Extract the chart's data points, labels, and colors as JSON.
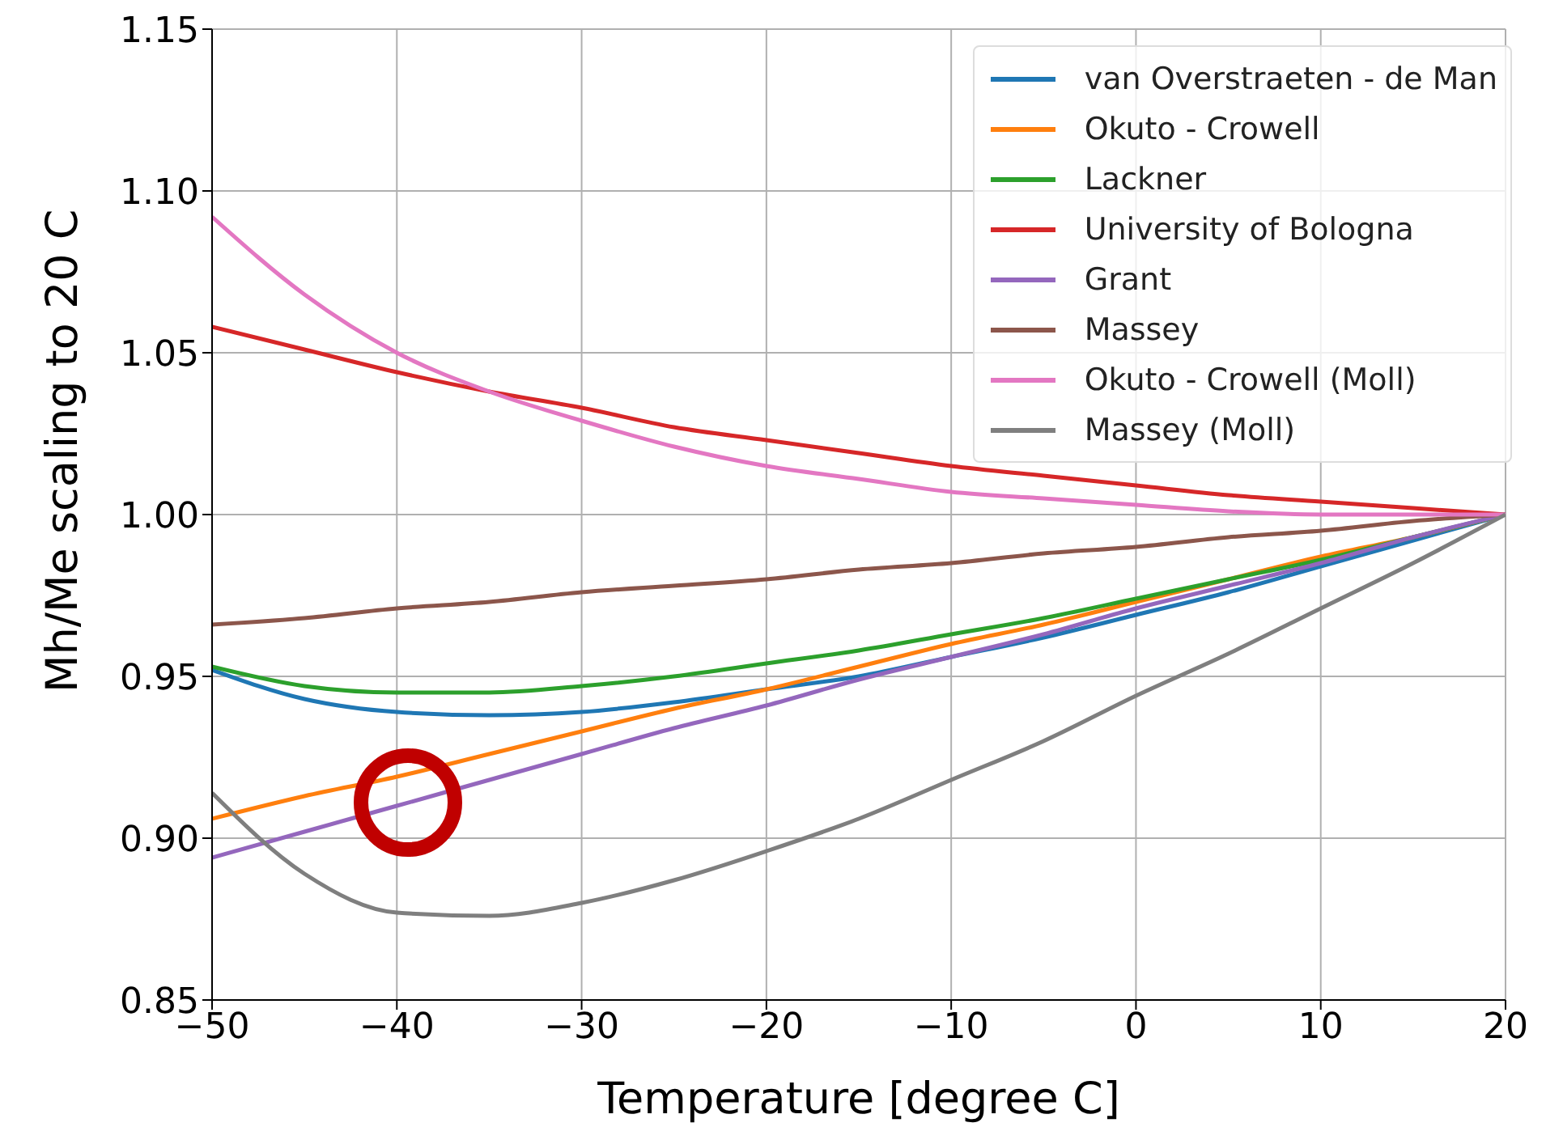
{
  "chart_data": {
    "type": "line",
    "xlabel": "Temperature [degree C]",
    "ylabel": "Mh/Me scaling to 20 C",
    "x": [
      -50,
      -45,
      -40,
      -35,
      -30,
      -25,
      -20,
      -15,
      -10,
      -5,
      0,
      5,
      10,
      15,
      20
    ],
    "series": [
      {
        "name": "van Overstraeten - de Man",
        "color": "#1f77b4",
        "values": [
          0.952,
          0.943,
          0.939,
          0.938,
          0.939,
          0.942,
          0.946,
          0.95,
          0.956,
          0.962,
          0.969,
          0.976,
          0.984,
          0.992,
          1.0
        ]
      },
      {
        "name": "Okuto - Crowell",
        "color": "#ff7f0e",
        "values": [
          0.906,
          0.913,
          0.919,
          0.926,
          0.933,
          0.94,
          0.946,
          0.953,
          0.96,
          0.966,
          0.973,
          0.98,
          0.987,
          0.993,
          1.0
        ]
      },
      {
        "name": "Lackner",
        "color": "#2ca02c",
        "values": [
          0.953,
          0.947,
          0.945,
          0.945,
          0.947,
          0.95,
          0.954,
          0.958,
          0.963,
          0.968,
          0.974,
          0.98,
          0.986,
          0.993,
          1.0
        ]
      },
      {
        "name": "University of Bologna",
        "color": "#d62728",
        "values": [
          1.058,
          1.051,
          1.044,
          1.038,
          1.033,
          1.027,
          1.023,
          1.019,
          1.015,
          1.012,
          1.009,
          1.006,
          1.004,
          1.002,
          1.0
        ]
      },
      {
        "name": "Grant",
        "color": "#9467bd",
        "values": [
          0.894,
          0.902,
          0.91,
          0.918,
          0.926,
          0.934,
          0.941,
          0.949,
          0.956,
          0.963,
          0.971,
          0.978,
          0.985,
          0.993,
          1.0
        ]
      },
      {
        "name": "Massey",
        "color": "#8c564b",
        "values": [
          0.966,
          0.968,
          0.971,
          0.973,
          0.976,
          0.978,
          0.98,
          0.983,
          0.985,
          0.988,
          0.99,
          0.993,
          0.995,
          0.998,
          1.0
        ]
      },
      {
        "name": "Okuto - Crowell (Moll)",
        "color": "#e377c2",
        "values": [
          1.092,
          1.068,
          1.05,
          1.038,
          1.029,
          1.021,
          1.015,
          1.011,
          1.007,
          1.005,
          1.003,
          1.001,
          1.0,
          1.0,
          1.0
        ]
      },
      {
        "name": "Massey (Moll)",
        "color": "#7f7f7f",
        "values": [
          0.914,
          0.889,
          0.877,
          0.876,
          0.88,
          0.887,
          0.896,
          0.906,
          0.918,
          0.93,
          0.944,
          0.957,
          0.971,
          0.985,
          1.0
        ]
      }
    ],
    "xlim": [
      -50,
      20
    ],
    "xticks": [
      {
        "value": -50,
        "label": "−50"
      },
      {
        "value": -40,
        "label": "−40"
      },
      {
        "value": -30,
        "label": "−30"
      },
      {
        "value": -20,
        "label": "−20"
      },
      {
        "value": -10,
        "label": "−10"
      },
      0,
      10,
      20
    ],
    "ylim": [
      0.85,
      1.15
    ],
    "yticks": [
      0.85,
      {
        "value": 0.9,
        "label": "0.90"
      },
      0.95,
      {
        "value": 1.0,
        "label": "1.00"
      },
      1.05,
      {
        "value": 1.1,
        "label": "1.10"
      },
      1.15
    ],
    "grid": true,
    "legend": "top right",
    "marker": "none",
    "line_style": "solid"
  }
}
